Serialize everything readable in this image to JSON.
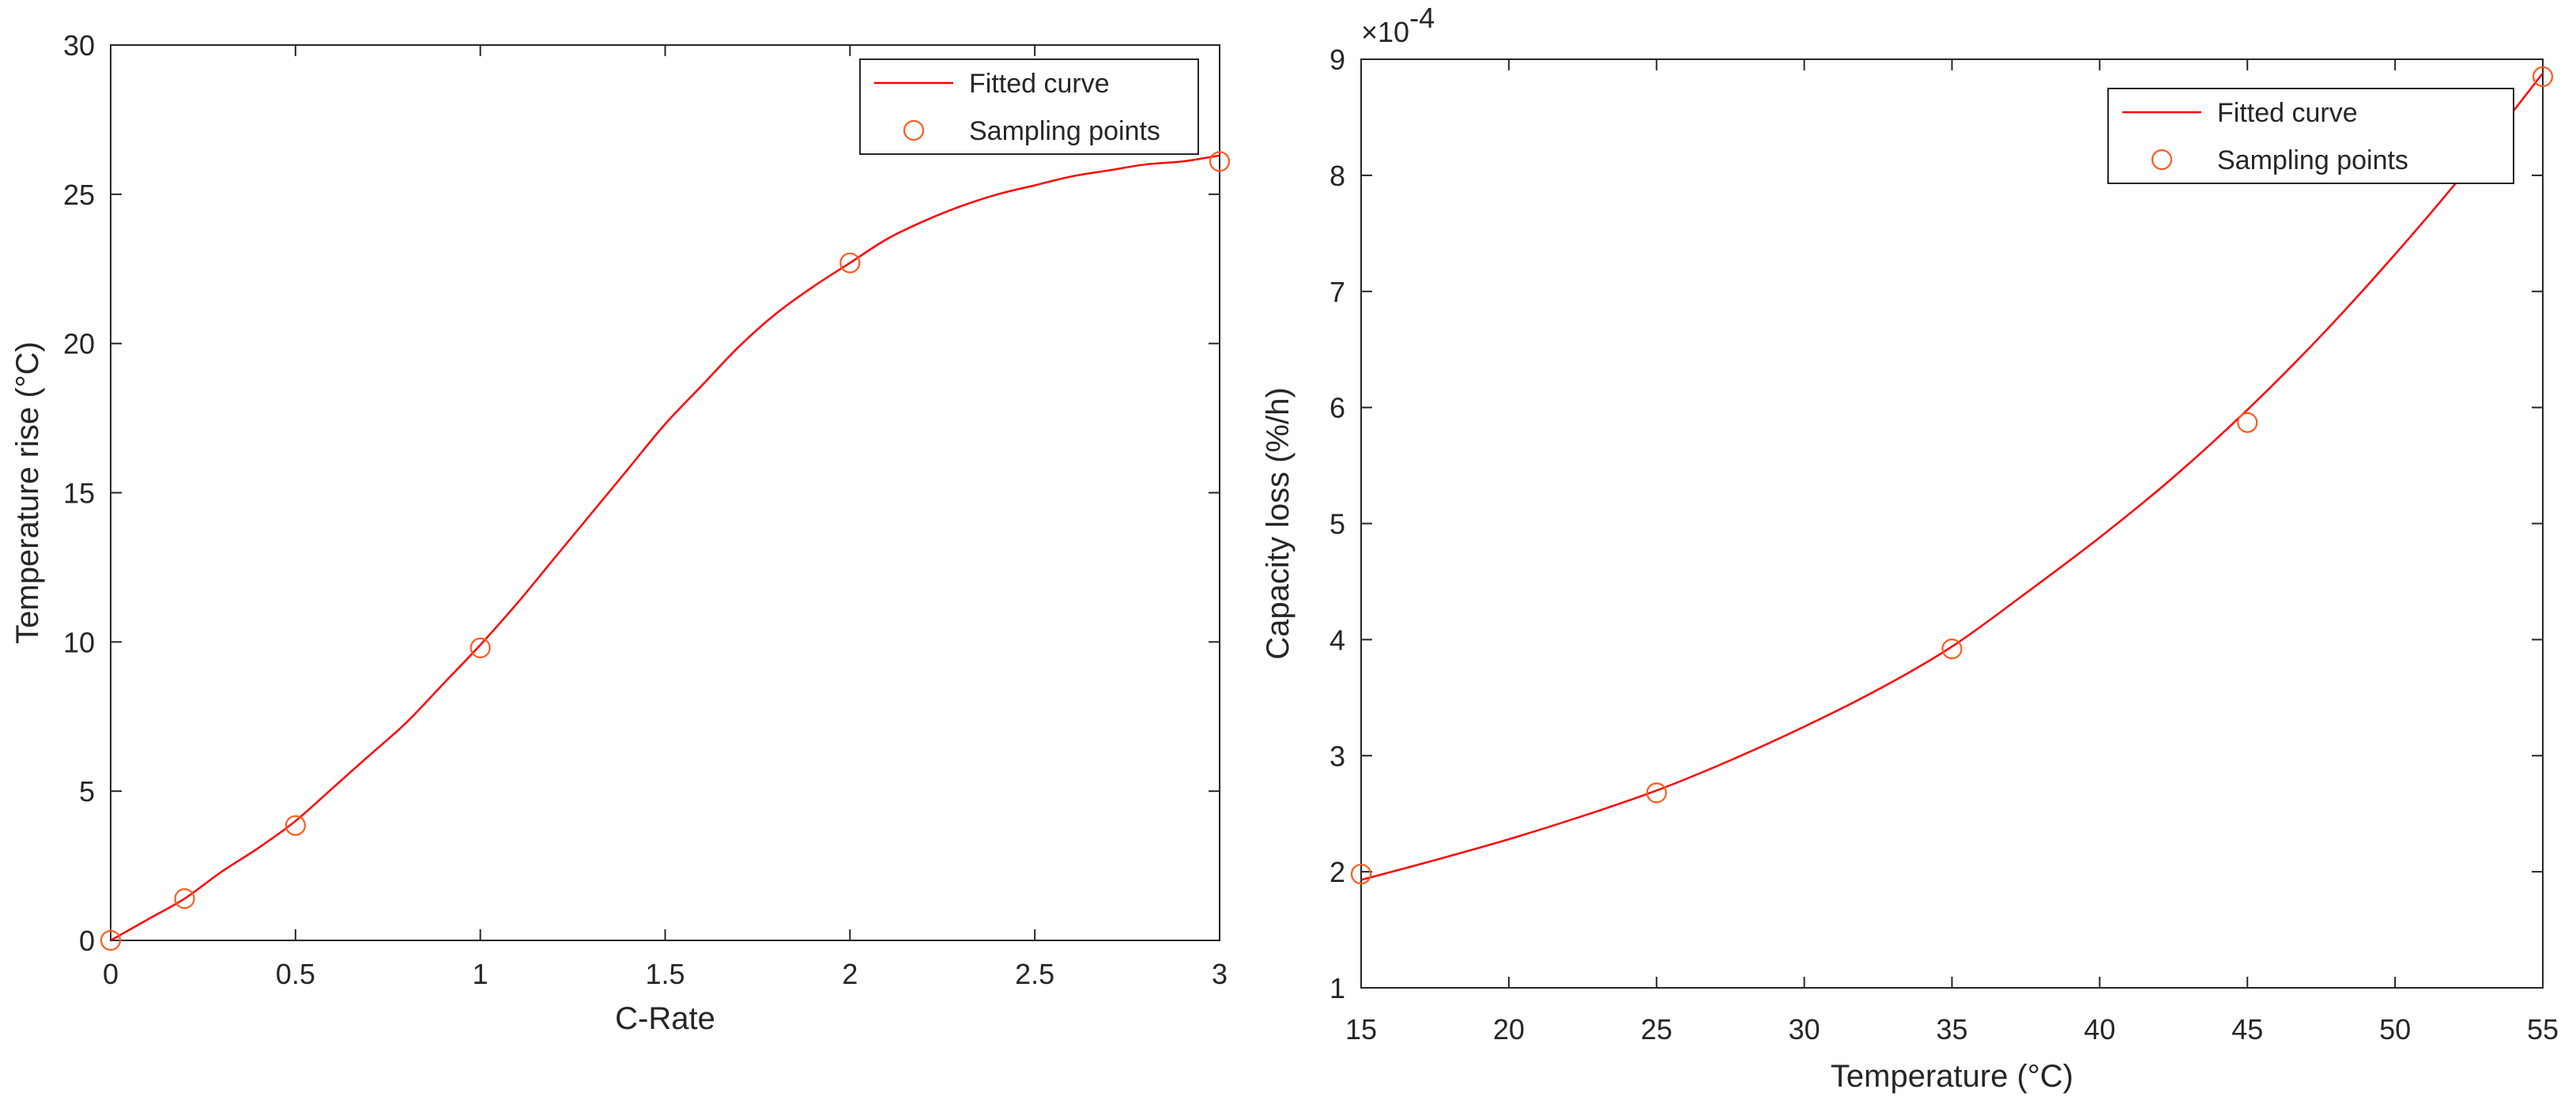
{
  "chart_data": [
    {
      "type": "line",
      "xlabel": "C-Rate",
      "ylabel": "Temperature rise (°C)",
      "xlim": [
        0,
        3
      ],
      "ylim": [
        0,
        30
      ],
      "x_ticks": [
        "0",
        "0.5",
        "1",
        "1.5",
        "2",
        "2.5",
        "3"
      ],
      "y_ticks": [
        "0",
        "5",
        "10",
        "15",
        "20",
        "25",
        "30"
      ],
      "grid": false,
      "legend_position": "top-right",
      "series": [
        {
          "name": "Fitted curve",
          "style": "line",
          "color": "#ff0000",
          "x": [
            0,
            0.1,
            0.2,
            0.3,
            0.4,
            0.5,
            0.6,
            0.7,
            0.8,
            0.9,
            1.0,
            1.1,
            1.2,
            1.3,
            1.4,
            1.5,
            1.6,
            1.7,
            1.8,
            1.9,
            2.0,
            2.1,
            2.2,
            2.3,
            2.4,
            2.5,
            2.6,
            2.7,
            2.8,
            2.9,
            3.0
          ],
          "y": [
            0,
            0.7,
            1.4,
            2.3,
            3.1,
            4.0,
            5.1,
            6.2,
            7.3,
            8.6,
            9.9,
            11.3,
            12.8,
            14.3,
            15.8,
            17.3,
            18.6,
            19.9,
            21.0,
            21.9,
            22.7,
            23.5,
            24.1,
            24.6,
            25.0,
            25.3,
            25.6,
            25.8,
            26.0,
            26.1,
            26.3
          ]
        },
        {
          "name": "Sampling points",
          "style": "marker",
          "color": "#ff5a1f",
          "x": [
            0,
            0.2,
            0.5,
            1,
            2,
            3
          ],
          "y": [
            0,
            1.4,
            3.85,
            9.8,
            22.7,
            26.1
          ]
        }
      ]
    },
    {
      "type": "line",
      "xlabel": "Temperature (°C)",
      "ylabel": "Capacity loss (%/h)",
      "y_multiplier": "×10",
      "y_multiplier_exponent": "-4",
      "xlim": [
        15,
        55
      ],
      "ylim": [
        1,
        9
      ],
      "x_ticks": [
        "15",
        "20",
        "25",
        "30",
        "35",
        "40",
        "45",
        "50",
        "55"
      ],
      "y_ticks": [
        "1",
        "2",
        "3",
        "4",
        "5",
        "6",
        "7",
        "8",
        "9"
      ],
      "grid": false,
      "legend_position": "top-right",
      "series": [
        {
          "name": "Fitted curve",
          "style": "line",
          "color": "#ff0000",
          "x": [
            15,
            17.5,
            20,
            22.5,
            25,
            27.5,
            30,
            32.5,
            35,
            37.5,
            40,
            42.5,
            45,
            47.5,
            50,
            52.5,
            55
          ],
          "y": [
            1.93,
            2.1,
            2.28,
            2.48,
            2.7,
            2.96,
            3.25,
            3.57,
            3.94,
            4.4,
            4.88,
            5.4,
            5.98,
            6.62,
            7.32,
            8.07,
            8.88
          ]
        },
        {
          "name": "Sampling points",
          "style": "marker",
          "color": "#ff5a1f",
          "x": [
            15,
            25,
            35,
            45,
            55
          ],
          "y": [
            1.98,
            2.68,
            3.92,
            5.87,
            8.85
          ]
        }
      ]
    }
  ]
}
